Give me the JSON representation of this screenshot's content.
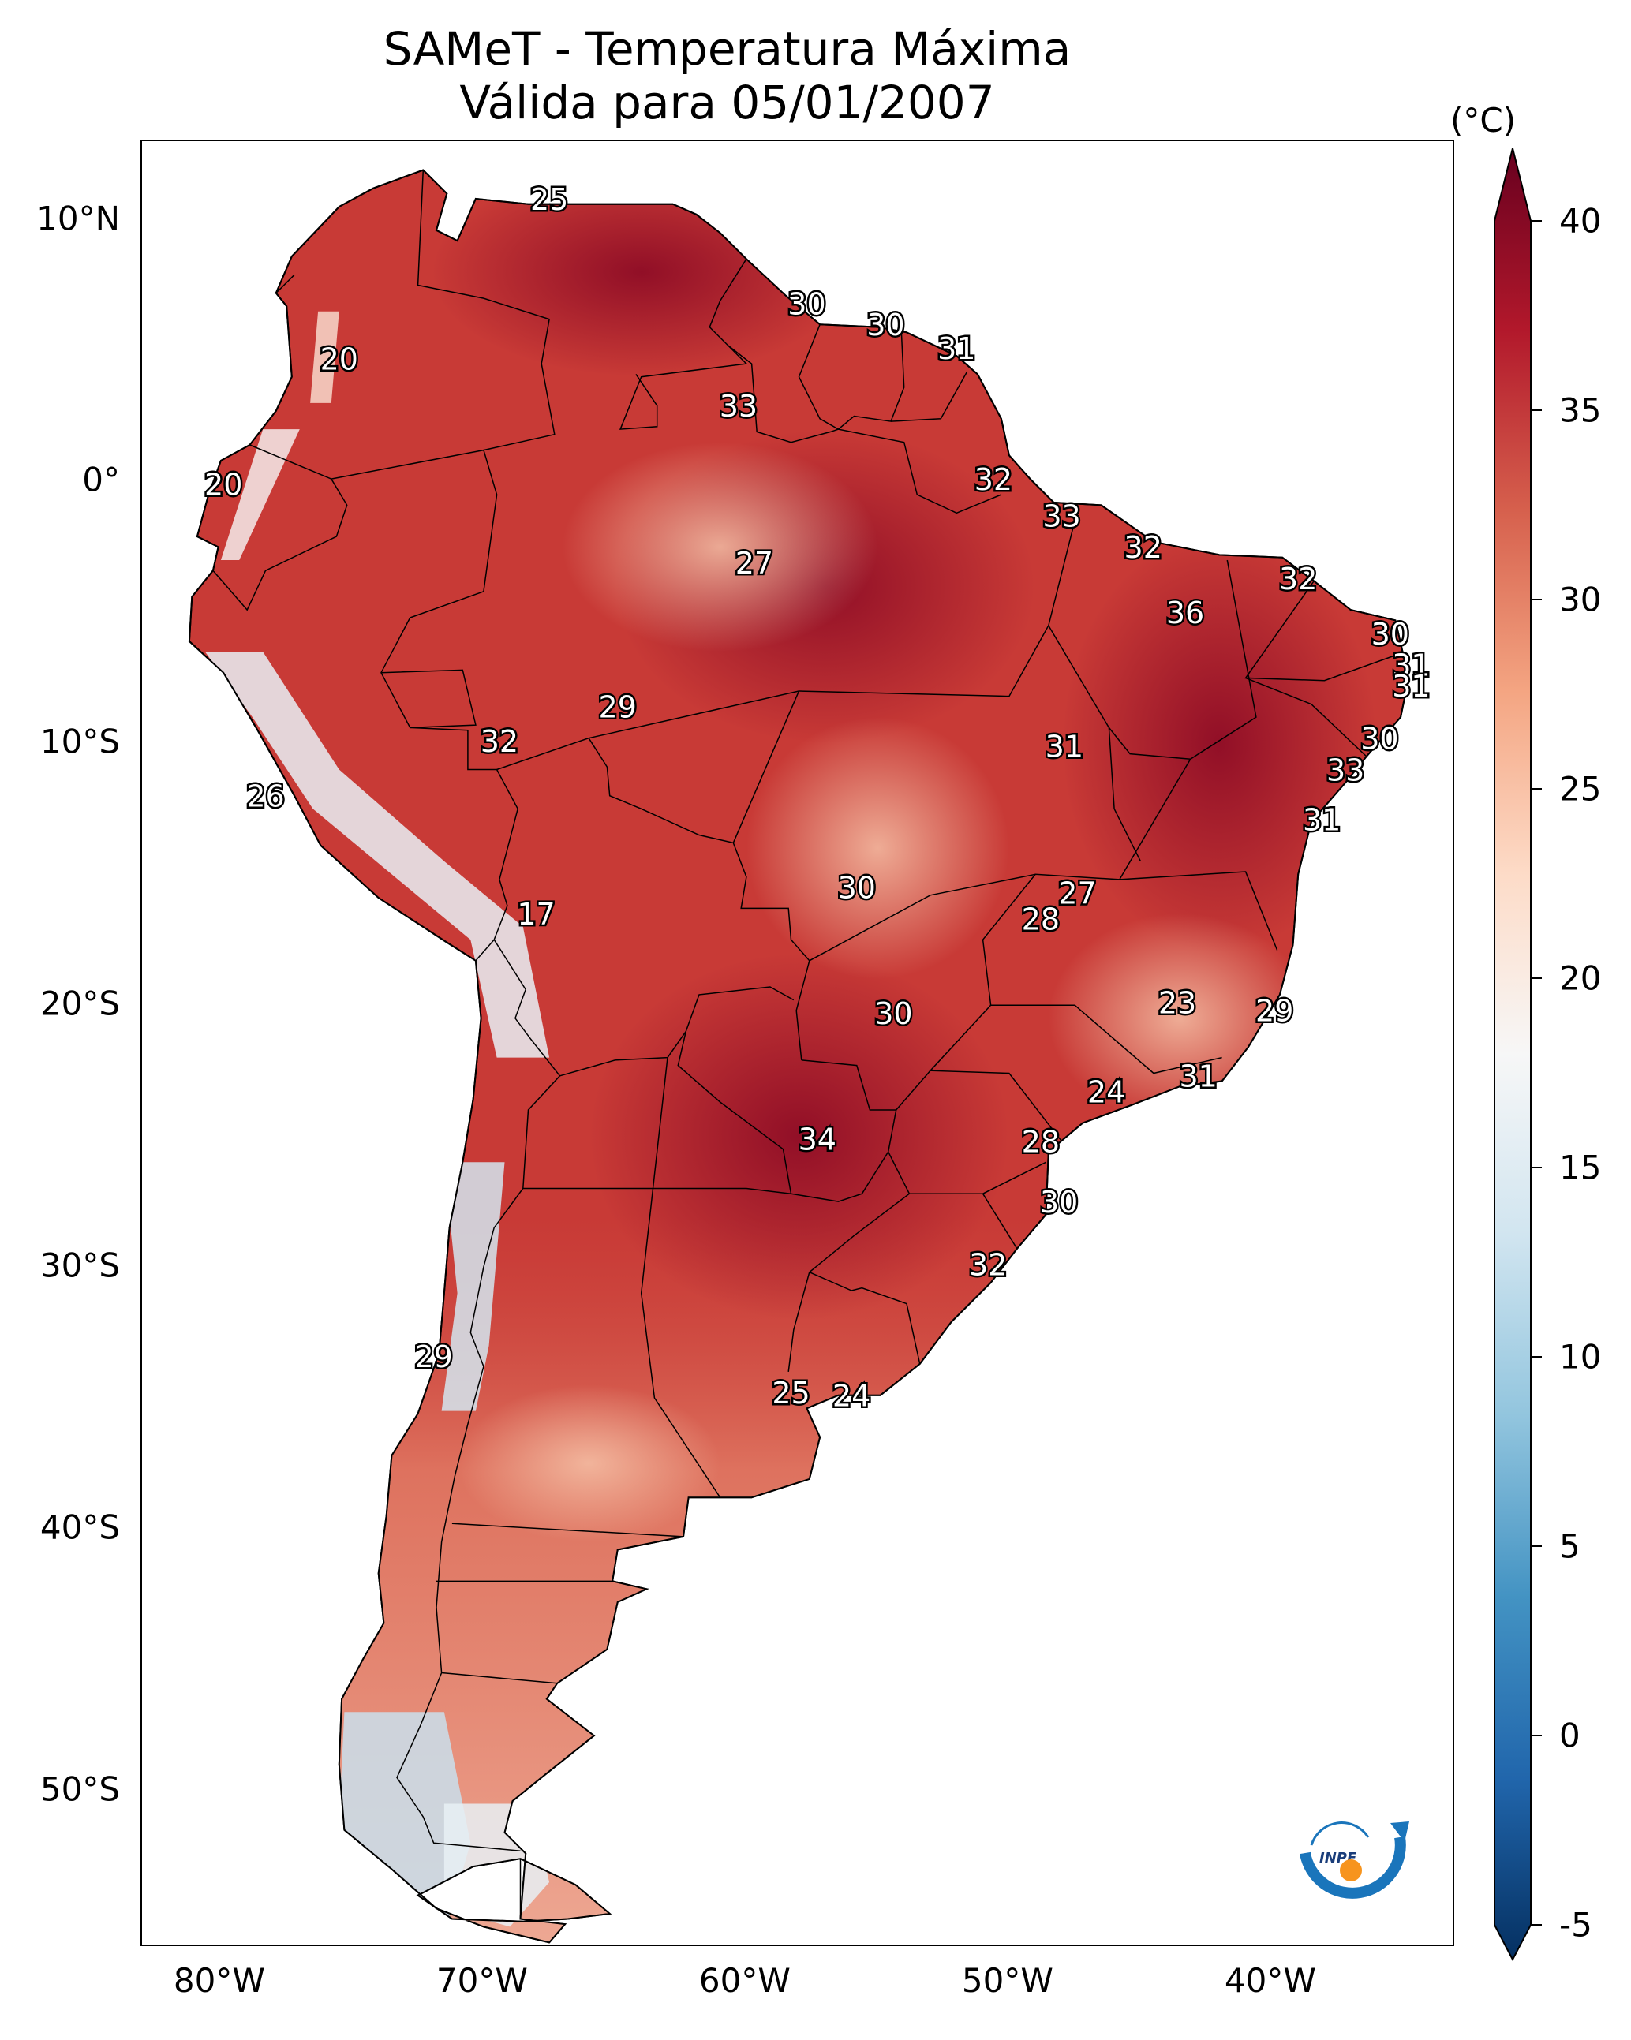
{
  "title": {
    "line1": "SAMeT - Temperatura Máxima",
    "line2": "Válida para 05/01/2007"
  },
  "map": {
    "lon_range": [
      -83,
      -33
    ],
    "lat_range": [
      -56,
      13
    ],
    "lat_ticks": [
      "10°N",
      "0°",
      "10°S",
      "20°S",
      "30°S",
      "40°S",
      "50°S"
    ],
    "lon_ticks": [
      "80°W",
      "70°W",
      "60°W",
      "50°W",
      "40°W"
    ],
    "labels": [
      {
        "text": "25",
        "lon": -67.5,
        "lat": 10.7
      },
      {
        "text": "20",
        "lon": -75.5,
        "lat": 4.6
      },
      {
        "text": "30",
        "lon": -57.7,
        "lat": 6.7
      },
      {
        "text": "30",
        "lon": -54.7,
        "lat": 5.9
      },
      {
        "text": "31",
        "lon": -52.0,
        "lat": 5.0
      },
      {
        "text": "33",
        "lon": -60.3,
        "lat": 2.8
      },
      {
        "text": "20",
        "lon": -79.9,
        "lat": -0.2
      },
      {
        "text": "32",
        "lon": -50.6,
        "lat": 0.0
      },
      {
        "text": "33",
        "lon": -48.0,
        "lat": -1.4
      },
      {
        "text": "27",
        "lon": -59.7,
        "lat": -3.2
      },
      {
        "text": "32",
        "lon": -44.9,
        "lat": -2.6
      },
      {
        "text": "32",
        "lon": -39.0,
        "lat": -3.8
      },
      {
        "text": "36",
        "lon": -43.3,
        "lat": -5.1
      },
      {
        "text": "30",
        "lon": -35.5,
        "lat": -5.9
      },
      {
        "text": "31",
        "lon": -34.7,
        "lat": -7.1
      },
      {
        "text": "31",
        "lon": -34.7,
        "lat": -7.9
      },
      {
        "text": "29",
        "lon": -64.9,
        "lat": -8.7
      },
      {
        "text": "32",
        "lon": -69.4,
        "lat": -10.0
      },
      {
        "text": "31",
        "lon": -47.9,
        "lat": -10.2
      },
      {
        "text": "30",
        "lon": -35.9,
        "lat": -9.9
      },
      {
        "text": "33",
        "lon": -37.2,
        "lat": -11.1
      },
      {
        "text": "26",
        "lon": -78.3,
        "lat": -12.1
      },
      {
        "text": "31",
        "lon": -38.1,
        "lat": -13.0
      },
      {
        "text": "30",
        "lon": -55.8,
        "lat": -15.6
      },
      {
        "text": "27",
        "lon": -47.4,
        "lat": -15.8
      },
      {
        "text": "28",
        "lon": -48.8,
        "lat": -16.8
      },
      {
        "text": "17",
        "lon": -68.0,
        "lat": -16.6
      },
      {
        "text": "23",
        "lon": -43.6,
        "lat": -20.0
      },
      {
        "text": "29",
        "lon": -39.9,
        "lat": -20.3
      },
      {
        "text": "30",
        "lon": -54.4,
        "lat": -20.4
      },
      {
        "text": "31",
        "lon": -42.8,
        "lat": -22.8
      },
      {
        "text": "24",
        "lon": -46.3,
        "lat": -23.4
      },
      {
        "text": "34",
        "lon": -57.3,
        "lat": -25.2
      },
      {
        "text": "28",
        "lon": -48.8,
        "lat": -25.3
      },
      {
        "text": "30",
        "lon": -48.1,
        "lat": -27.6
      },
      {
        "text": "32",
        "lon": -50.8,
        "lat": -30.0
      },
      {
        "text": "29",
        "lon": -71.9,
        "lat": -33.5
      },
      {
        "text": "25",
        "lon": -58.3,
        "lat": -34.9
      },
      {
        "text": "24",
        "lon": -56.0,
        "lat": -35.0
      }
    ]
  },
  "colorbar": {
    "unit": "(°C)",
    "min": -5,
    "max": 40,
    "ticks": [
      "40",
      "35",
      "30",
      "25",
      "20",
      "15",
      "10",
      "5",
      "0",
      "-5"
    ],
    "colors": [
      "#053061",
      "#2166ac",
      "#4393c3",
      "#92c5de",
      "#d1e5f0",
      "#f7f7f7",
      "#fddbc7",
      "#f4a582",
      "#d6604d",
      "#b2182b",
      "#67001f"
    ]
  },
  "logo": {
    "text": "INPE",
    "arrow_color": "#1a75bb",
    "dot_color": "#f7941d"
  }
}
